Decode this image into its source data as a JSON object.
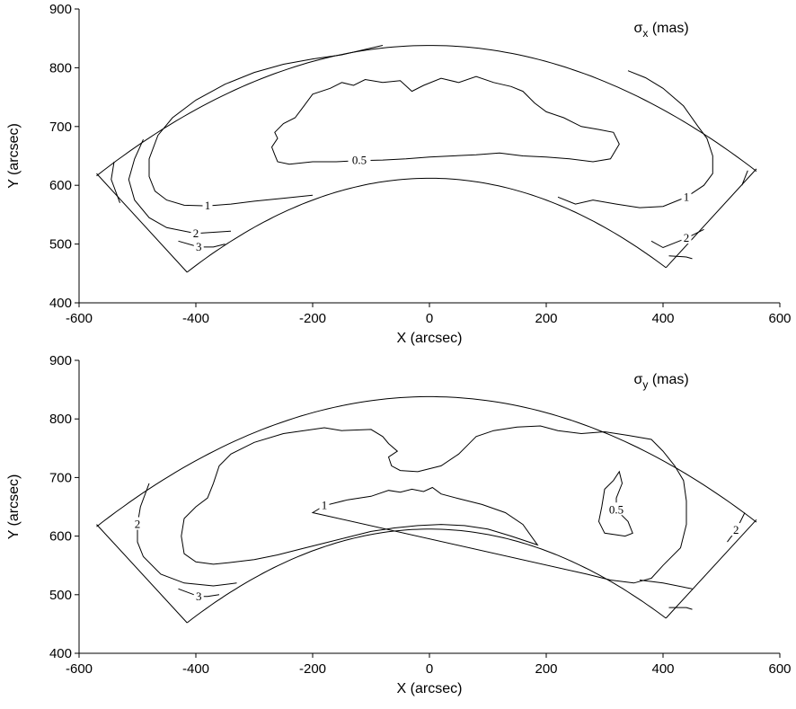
{
  "chart_data": [
    {
      "type": "contour",
      "title": "σ",
      "title_subscript": "x",
      "title_suffix": " (mas)",
      "xlabel": "X (arcsec)",
      "ylabel": "Y (arcsec)",
      "xlim": [
        -600,
        600
      ],
      "ylim": [
        400,
        900
      ],
      "xticks": [
        -600,
        -400,
        -200,
        0,
        200,
        400,
        600
      ],
      "yticks": [
        400,
        500,
        600,
        700,
        800,
        900
      ],
      "tick_labels_x": [
        "-600",
        "-400",
        "-200",
        "0",
        "200",
        "400",
        "600"
      ],
      "tick_labels_y": [
        "400",
        "500",
        "600",
        "700",
        "800",
        "900"
      ],
      "grid": false,
      "contours": [
        {
          "level_label": "0.5",
          "closed": true,
          "label_at": [
            -120,
            642
          ],
          "points": [
            [
              -265,
              652
            ],
            [
              -260,
              640
            ],
            [
              -240,
              636
            ],
            [
              -200,
              640
            ],
            [
              -160,
              640
            ],
            [
              -120,
              642
            ],
            [
              -80,
              643
            ],
            [
              -40,
              645
            ],
            [
              0,
              648
            ],
            [
              40,
              650
            ],
            [
              80,
              652
            ],
            [
              120,
              655
            ],
            [
              160,
              650
            ],
            [
              200,
              648
            ],
            [
              240,
              645
            ],
            [
              280,
              640
            ],
            [
              310,
              645
            ],
            [
              325,
              670
            ],
            [
              315,
              690
            ],
            [
              290,
              695
            ],
            [
              260,
              700
            ],
            [
              230,
              715
            ],
            [
              200,
              725
            ],
            [
              180,
              740
            ],
            [
              160,
              760
            ],
            [
              140,
              768
            ],
            [
              110,
              775
            ],
            [
              80,
              785
            ],
            [
              50,
              775
            ],
            [
              20,
              782
            ],
            [
              -10,
              770
            ],
            [
              -30,
              760
            ],
            [
              -50,
              778
            ],
            [
              -80,
              775
            ],
            [
              -110,
              780
            ],
            [
              -130,
              770
            ],
            [
              -150,
              775
            ],
            [
              -170,
              765
            ],
            [
              -200,
              755
            ],
            [
              -215,
              735
            ],
            [
              -230,
              715
            ],
            [
              -250,
              705
            ],
            [
              -265,
              690
            ],
            [
              -260,
              680
            ],
            [
              -270,
              665
            ],
            [
              -265,
              652
            ]
          ]
        },
        {
          "level_label": "1",
          "closed": false,
          "label_at": [
            -380,
            565
          ],
          "points": [
            [
              -200,
              583
            ],
            [
              -250,
              578
            ],
            [
              -300,
              573
            ],
            [
              -340,
              568
            ],
            [
              -380,
              565
            ],
            [
              -420,
              566
            ],
            [
              -450,
              575
            ],
            [
              -470,
              590
            ],
            [
              -480,
              615
            ],
            [
              -480,
              645
            ],
            [
              -465,
              685
            ],
            [
              -440,
              715
            ],
            [
              -400,
              745
            ],
            [
              -350,
              772
            ],
            [
              -300,
              792
            ],
            [
              -250,
              806
            ],
            [
              -200,
              815
            ],
            [
              -150,
              822
            ],
            [
              -80,
              838
            ]
          ]
        },
        {
          "level_label": "1",
          "closed": false,
          "label_at": [
            440,
            580
          ],
          "points": [
            [
              220,
              580
            ],
            [
              250,
              568
            ],
            [
              280,
              575
            ],
            [
              320,
              568
            ],
            [
              360,
              562
            ],
            [
              400,
              564
            ],
            [
              440,
              580
            ],
            [
              470,
              600
            ],
            [
              485,
              620
            ],
            [
              485,
              650
            ],
            [
              475,
              680
            ],
            [
              460,
              700
            ],
            [
              435,
              735
            ],
            [
              400,
              765
            ],
            [
              370,
              783
            ],
            [
              340,
              795
            ]
          ]
        },
        {
          "level_label": "2",
          "closed": false,
          "label_at": [
            -400,
            518
          ],
          "points": [
            [
              -340,
              522
            ],
            [
              -370,
              520
            ],
            [
              -400,
              518
            ],
            [
              -450,
              528
            ],
            [
              -480,
              545
            ],
            [
              -505,
              575
            ],
            [
              -515,
              610
            ],
            [
              -505,
              645
            ],
            [
              -490,
              678
            ]
          ]
        },
        {
          "level_label": "2",
          "closed": false,
          "label_at": [
            440,
            510
          ],
          "points": [
            [
              380,
              505
            ],
            [
              400,
              494
            ],
            [
              440,
              510
            ],
            [
              470,
              525
            ]
          ]
        },
        {
          "level_label": "",
          "closed": false,
          "label_at": null,
          "points": [
            [
              410,
              480
            ],
            [
              440,
              478
            ],
            [
              450,
              475
            ]
          ]
        },
        {
          "level_label": "3",
          "closed": false,
          "label_at": [
            -395,
            495
          ],
          "points": [
            [
              -350,
              500
            ],
            [
              -370,
              495
            ],
            [
              -395,
              495
            ],
            [
              -430,
              505
            ]
          ]
        },
        {
          "level_label": "",
          "closed": false,
          "label_at": null,
          "points": [
            [
              -530,
              570
            ],
            [
              -545,
              610
            ],
            [
              -540,
              640
            ]
          ]
        },
        {
          "level_label": "",
          "closed": false,
          "label_at": null,
          "points": [
            [
              535,
              600
            ],
            [
              545,
              625
            ]
          ]
        }
      ]
    },
    {
      "type": "contour",
      "title": "σ",
      "title_subscript": "y",
      "title_suffix": " (mas)",
      "xlabel": "X (arcsec)",
      "ylabel": "Y (arcsec)",
      "xlim": [
        -600,
        600
      ],
      "ylim": [
        400,
        900
      ],
      "xticks": [
        -600,
        -400,
        -200,
        0,
        200,
        400,
        600
      ],
      "yticks": [
        400,
        500,
        600,
        700,
        800,
        900
      ],
      "tick_labels_x": [
        "-600",
        "-400",
        "-200",
        "0",
        "200",
        "400",
        "600"
      ],
      "tick_labels_y": [
        "400",
        "500",
        "600",
        "700",
        "800",
        "900"
      ],
      "grid": false,
      "contours": [
        {
          "level_label": "1",
          "closed": true,
          "label_at": [
            -180,
            652
          ],
          "points": [
            [
              -200,
              640
            ],
            [
              -180,
              652
            ],
            [
              -140,
              662
            ],
            [
              -100,
              668
            ],
            [
              -70,
              678
            ],
            [
              -50,
              675
            ],
            [
              -30,
              680
            ],
            [
              -10,
              676
            ],
            [
              5,
              683
            ],
            [
              20,
              672
            ],
            [
              50,
              664
            ],
            [
              90,
              654
            ],
            [
              130,
              640
            ],
            [
              160,
              620
            ],
            [
              185,
              585
            ],
            [
              140,
              600
            ],
            [
              100,
              612
            ],
            [
              60,
              618
            ],
            [
              20,
              620
            ],
            [
              -20,
              618
            ],
            [
              -60,
              614
            ],
            [
              -100,
              608
            ],
            [
              -140,
              598
            ],
            [
              -180,
              588
            ],
            [
              -220,
              578
            ],
            [
              -260,
              568
            ],
            [
              -300,
              560
            ],
            [
              -340,
              555
            ],
            [
              -370,
              552
            ],
            [
              -400,
              556
            ],
            [
              -420,
              570
            ],
            [
              -425,
              600
            ],
            [
              -420,
              630
            ],
            [
              -400,
              650
            ],
            [
              -380,
              665
            ],
            [
              -370,
              690
            ],
            [
              -360,
              720
            ],
            [
              -340,
              740
            ],
            [
              -300,
              760
            ],
            [
              -250,
              775
            ],
            [
              -180,
              785
            ],
            [
              -150,
              780
            ],
            [
              -100,
              782
            ],
            [
              -80,
              770
            ],
            [
              -70,
              758
            ],
            [
              -55,
              745
            ],
            [
              -70,
              735
            ],
            [
              -65,
              720
            ],
            [
              -50,
              712
            ],
            [
              -20,
              710
            ],
            [
              20,
              720
            ],
            [
              50,
              740
            ],
            [
              70,
              760
            ],
            [
              80,
              770
            ],
            [
              110,
              780
            ],
            [
              150,
              786
            ],
            [
              190,
              788
            ],
            [
              220,
              780
            ],
            [
              260,
              775
            ],
            [
              300,
              778
            ],
            [
              340,
              772
            ],
            [
              380,
              765
            ],
            [
              400,
              745
            ],
            [
              420,
              720
            ],
            [
              435,
              695
            ],
            [
              440,
              660
            ],
            [
              440,
              620
            ],
            [
              430,
              580
            ],
            [
              400,
              550
            ],
            [
              380,
              528
            ],
            [
              350,
              520
            ],
            [
              310,
              525
            ],
            [
              270,
              535
            ]
          ]
        },
        {
          "level_label": "0.5",
          "closed": true,
          "label_at": [
            320,
            645
          ],
          "points": [
            [
              320,
              645
            ],
            [
              340,
              625
            ],
            [
              348,
              605
            ],
            [
              335,
              600
            ],
            [
              300,
              605
            ],
            [
              290,
              625
            ],
            [
              295,
              650
            ],
            [
              300,
              680
            ],
            [
              315,
              695
            ],
            [
              325,
              710
            ],
            [
              330,
              690
            ],
            [
              320,
              665
            ],
            [
              320,
              645
            ]
          ]
        },
        {
          "level_label": "2",
          "closed": false,
          "label_at": [
            -500,
            620
          ],
          "points": [
            [
              -330,
              520
            ],
            [
              -370,
              515
            ],
            [
              -420,
              520
            ],
            [
              -460,
              535
            ],
            [
              -490,
              565
            ],
            [
              -500,
              590
            ],
            [
              -500,
              620
            ],
            [
              -495,
              650
            ],
            [
              -480,
              690
            ]
          ]
        },
        {
          "level_label": "2",
          "closed": false,
          "label_at": [
            525,
            610
          ],
          "points": [
            [
              510,
              590
            ],
            [
              525,
              610
            ],
            [
              540,
              640
            ]
          ]
        },
        {
          "level_label": "3",
          "closed": false,
          "label_at": [
            -395,
            497
          ],
          "points": [
            [
              -360,
              500
            ],
            [
              -380,
              497
            ],
            [
              -395,
              497
            ],
            [
              -430,
              510
            ]
          ]
        },
        {
          "level_label": "",
          "closed": false,
          "label_at": null,
          "points": [
            [
              410,
              478
            ],
            [
              440,
              478
            ],
            [
              450,
              475
            ]
          ]
        },
        {
          "level_label": "",
          "closed": false,
          "label_at": null,
          "points": [
            [
              360,
              525
            ],
            [
              400,
              520
            ],
            [
              450,
              510
            ]
          ]
        }
      ]
    }
  ]
}
